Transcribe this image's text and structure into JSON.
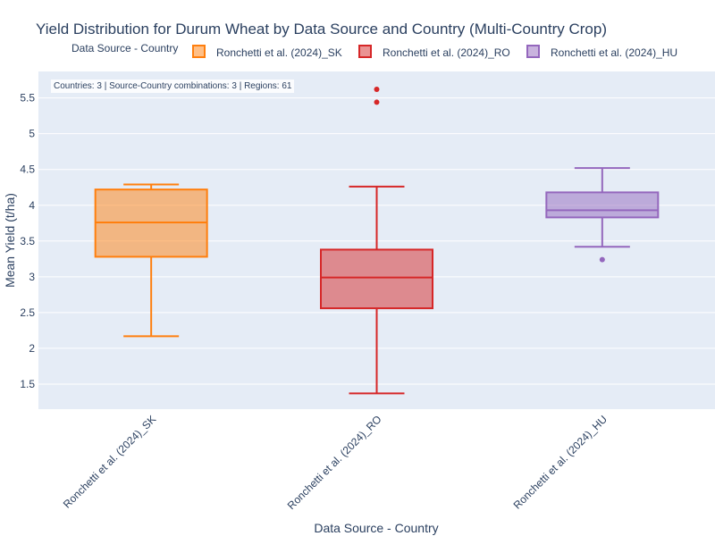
{
  "chart_data": {
    "type": "box",
    "title": "Yield Distribution for Durum Wheat by Data Source and Country (Multi-Country Crop)",
    "xlabel": "Data Source - Country",
    "ylabel": "Mean Yield (t/ha)",
    "ylim": [
      1.15,
      5.87
    ],
    "yticks": [
      1.5,
      2,
      2.5,
      3,
      3.5,
      4,
      4.5,
      5,
      5.5
    ],
    "ytick_labels": [
      "1.5",
      "2",
      "2.5",
      "3",
      "3.5",
      "4",
      "4.5",
      "5",
      "5.5"
    ],
    "legend": {
      "title": "Data Source - Country",
      "placement": "top"
    },
    "annotation": "Countries: 3 | Source-Country combinations: 3 | Regions: 61",
    "grid": true,
    "series": [
      {
        "name": "Ronchetti et al. (2024)_SK",
        "color": "#ff7f0e",
        "fill": "rgba(255,127,14,0.5)",
        "lowerfence": 2.17,
        "q1": 3.28,
        "median": 3.76,
        "q3": 4.22,
        "upperfence": 4.29,
        "outliers": []
      },
      {
        "name": "Ronchetti et al. (2024)_RO",
        "color": "#d62728",
        "fill": "rgba(214,39,40,0.5)",
        "lowerfence": 1.37,
        "q1": 2.56,
        "median": 2.99,
        "q3": 3.38,
        "upperfence": 4.26,
        "outliers": [
          5.44,
          5.62
        ]
      },
      {
        "name": "Ronchetti et al. (2024)_HU",
        "color": "#9467bd",
        "fill": "rgba(148,103,189,0.5)",
        "lowerfence": 3.42,
        "q1": 3.83,
        "median": 3.93,
        "q3": 4.18,
        "upperfence": 4.52,
        "outliers": [
          3.24
        ]
      }
    ]
  }
}
